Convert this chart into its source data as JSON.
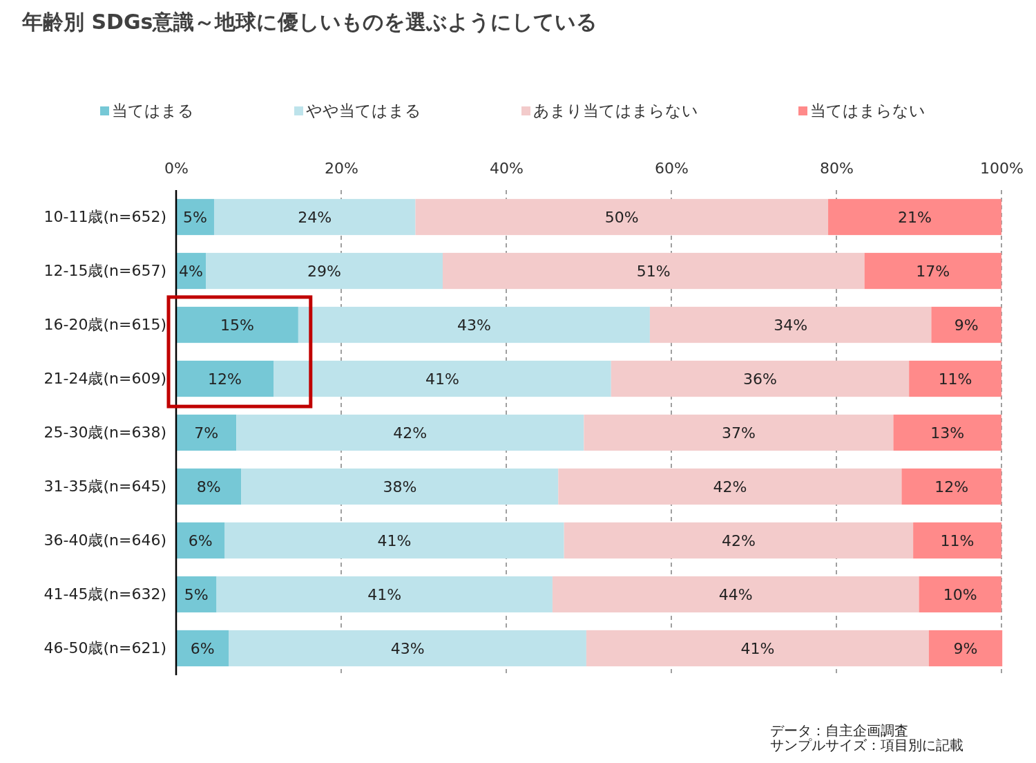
{
  "chart_data": {
    "type": "bar",
    "orientation": "horizontal",
    "stacked": true,
    "title": "年齢別 SDGs意識～地球に優しいものを選ぶようにしている",
    "categories": [
      "10-11歳(n=652)",
      "12-15歳(n=657)",
      "16-20歳(n=615)",
      "21-24歳(n=609)",
      "25-30歳(n=638)",
      "31-35歳(n=645)",
      "36-40歳(n=646)",
      "41-45歳(n=632)",
      "46-50歳(n=621)"
    ],
    "series": [
      {
        "name": "当てはまる",
        "color": "#76c8d6",
        "values": [
          4.6,
          3.6,
          14.8,
          11.8,
          7.3,
          7.9,
          5.9,
          4.9,
          6.4
        ],
        "value_labels": [
          "5%",
          "4%",
          "15%",
          "12%",
          "7%",
          "8%",
          "6%",
          "5%",
          "6%"
        ]
      },
      {
        "name": "やや当てはまる",
        "color": "#bde3eb",
        "values": [
          24.4,
          28.7,
          42.6,
          40.9,
          42.1,
          38.4,
          41.1,
          40.7,
          43.3
        ],
        "value_labels": [
          "24%",
          "29%",
          "43%",
          "41%",
          "42%",
          "38%",
          "41%",
          "41%",
          "43%"
        ]
      },
      {
        "name": "あまり当てはまらない",
        "color": "#f3cbcb",
        "values": [
          50.0,
          51.1,
          34.1,
          36.1,
          37.5,
          41.6,
          42.3,
          44.4,
          41.5
        ],
        "value_labels": [
          "50%",
          "51%",
          "34%",
          "36%",
          "37%",
          "42%",
          "42%",
          "44%",
          "41%"
        ]
      },
      {
        "name": "当てはまらない",
        "color": "#ff8a8a",
        "values": [
          21.0,
          16.6,
          8.5,
          11.2,
          13.1,
          12.1,
          10.7,
          10.0,
          8.9
        ],
        "value_labels": [
          "21%",
          "17%",
          "9%",
          "11%",
          "13%",
          "12%",
          "11%",
          "10%",
          "9%"
        ]
      }
    ],
    "xlim": [
      0,
      100
    ],
    "xticks": [
      {
        "value": 0,
        "label": "0%"
      },
      {
        "value": 20,
        "label": "20%"
      },
      {
        "value": 40,
        "label": "40%"
      },
      {
        "value": 60,
        "label": "60%"
      },
      {
        "value": 80,
        "label": "80%"
      },
      {
        "value": 100,
        "label": "100%"
      }
    ],
    "grid": "x",
    "legend": "top",
    "annotations": [
      "データ：自主企画調査",
      "サンプルサイズ：項目別に記載"
    ]
  }
}
